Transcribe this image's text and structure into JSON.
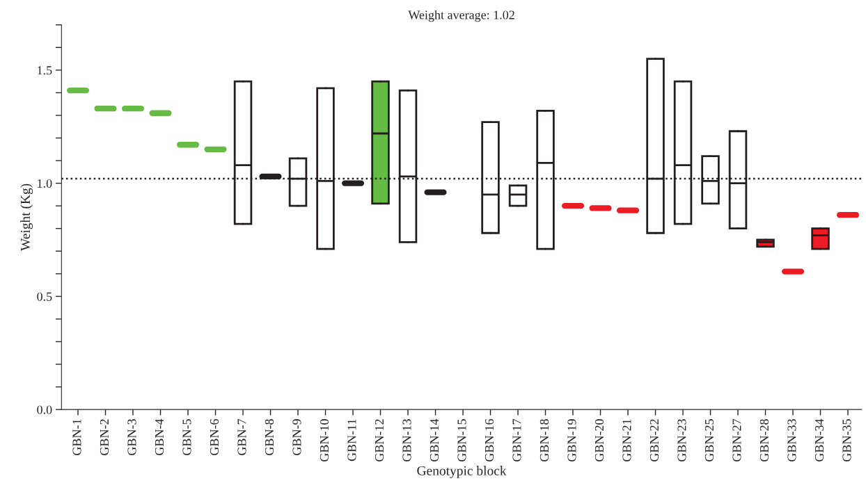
{
  "chart_data": {
    "type": "box",
    "title": "Weight average: 1.02",
    "xlabel": "Genotypic block",
    "ylabel": "Weight (Kg)",
    "categories": [
      "GBN-1",
      "GBN-2",
      "GBN-3",
      "GBN-4",
      "GBN-5",
      "GBN-6",
      "GBN-7",
      "GBN-8",
      "GBN-9",
      "GBN-10",
      "GBN-11",
      "GBN-12",
      "GBN-13",
      "GBN-14",
      "GBN-15",
      "GBN-16",
      "GBN-17",
      "GBN-18",
      "GBN-19",
      "GBN-20",
      "GBN-21",
      "GBN-22",
      "GBN-23",
      "GBN-25",
      "GBN-27",
      "GBN-28",
      "GBN-33",
      "GBN-34",
      "GBN-35"
    ],
    "colors": [
      "#66bb44",
      "#66bb44",
      "#66bb44",
      "#66bb44",
      "#66bb44",
      "#66bb44",
      "#ffffff",
      "#231f20",
      "#ffffff",
      "#ffffff",
      "#231f20",
      "#66bb44",
      "#ffffff",
      "#231f20",
      "#ffffff",
      "#ffffff",
      "#ffffff",
      "#ffffff",
      "#ed1c24",
      "#ed1c24",
      "#ed1c24",
      "#ffffff",
      "#ffffff",
      "#ffffff",
      "#ffffff",
      "#ed1c24",
      "#ed1c24",
      "#ed1c24",
      "#ed1c24"
    ],
    "boxes": [
      {
        "low": 1.41,
        "q1": 1.41,
        "median": 1.41,
        "q3": 1.41,
        "high": 1.41
      },
      {
        "low": 1.33,
        "q1": 1.33,
        "median": 1.33,
        "q3": 1.33,
        "high": 1.33
      },
      {
        "low": 1.33,
        "q1": 1.33,
        "median": 1.33,
        "q3": 1.33,
        "high": 1.33
      },
      {
        "low": 1.31,
        "q1": 1.31,
        "median": 1.31,
        "q3": 1.31,
        "high": 1.31
      },
      {
        "low": 1.17,
        "q1": 1.17,
        "median": 1.17,
        "q3": 1.17,
        "high": 1.17
      },
      {
        "low": 1.15,
        "q1": 1.15,
        "median": 1.15,
        "q3": 1.15,
        "high": 1.15
      },
      {
        "low": 0.82,
        "q1": 0.82,
        "median": 1.08,
        "q3": 1.45,
        "high": 1.45
      },
      {
        "low": 1.03,
        "q1": 1.03,
        "median": 1.03,
        "q3": 1.03,
        "high": 1.03
      },
      {
        "low": 0.9,
        "q1": 0.9,
        "median": 1.02,
        "q3": 1.11,
        "high": 1.11
      },
      {
        "low": 0.71,
        "q1": 0.71,
        "median": 1.01,
        "q3": 1.42,
        "high": 1.42
      },
      {
        "low": 1.0,
        "q1": 1.0,
        "median": 1.0,
        "q3": 1.0,
        "high": 1.0
      },
      {
        "low": 0.91,
        "q1": 0.91,
        "median": 1.22,
        "q3": 1.45,
        "high": 1.45
      },
      {
        "low": 0.74,
        "q1": 0.74,
        "median": 1.03,
        "q3": 1.41,
        "high": 1.41
      },
      {
        "low": 0.96,
        "q1": 0.96,
        "median": 0.96,
        "q3": 0.96,
        "high": 0.96
      },
      null,
      {
        "low": 0.78,
        "q1": 0.78,
        "median": 0.95,
        "q3": 1.27,
        "high": 1.27
      },
      {
        "low": 0.9,
        "q1": 0.9,
        "median": 0.95,
        "q3": 0.99,
        "high": 0.99
      },
      {
        "low": 0.71,
        "q1": 0.71,
        "median": 1.09,
        "q3": 1.32,
        "high": 1.32
      },
      {
        "low": 0.9,
        "q1": 0.9,
        "median": 0.9,
        "q3": 0.9,
        "high": 0.9
      },
      {
        "low": 0.89,
        "q1": 0.89,
        "median": 0.89,
        "q3": 0.89,
        "high": 0.89
      },
      {
        "low": 0.88,
        "q1": 0.88,
        "median": 0.88,
        "q3": 0.88,
        "high": 0.88
      },
      {
        "low": 0.78,
        "q1": 0.78,
        "median": 1.02,
        "q3": 1.55,
        "high": 1.55
      },
      {
        "low": 0.82,
        "q1": 0.82,
        "median": 1.08,
        "q3": 1.45,
        "high": 1.45
      },
      {
        "low": 0.91,
        "q1": 0.91,
        "median": 1.01,
        "q3": 1.12,
        "high": 1.12
      },
      {
        "low": 0.8,
        "q1": 0.8,
        "median": 1.0,
        "q3": 1.23,
        "high": 1.23
      },
      {
        "low": 0.72,
        "q1": 0.72,
        "median": 0.74,
        "q3": 0.75,
        "high": 0.75
      },
      {
        "low": 0.61,
        "q1": 0.61,
        "median": 0.61,
        "q3": 0.61,
        "high": 0.61
      },
      {
        "low": 0.71,
        "q1": 0.71,
        "median": 0.77,
        "q3": 0.8,
        "high": 0.8
      },
      {
        "low": 0.86,
        "q1": 0.86,
        "median": 0.86,
        "q3": 0.86,
        "high": 0.86
      }
    ],
    "ylim": [
      0,
      1.7
    ],
    "yticks": [
      {
        "value": 0,
        "label": "0.0"
      },
      {
        "value": 0.1,
        "label": null
      },
      {
        "value": 0.2,
        "label": null
      },
      {
        "value": 0.3,
        "label": null
      },
      {
        "value": 0.4,
        "label": null
      },
      {
        "value": 0.5,
        "label": "0.5"
      },
      {
        "value": 0.6,
        "label": null
      },
      {
        "value": 0.7,
        "label": null
      },
      {
        "value": 0.8,
        "label": null
      },
      {
        "value": 0.9,
        "label": null
      },
      {
        "value": 1.0,
        "label": "1.0"
      },
      {
        "value": 1.1,
        "label": null
      },
      {
        "value": 1.2,
        "label": null
      },
      {
        "value": 1.3,
        "label": null
      },
      {
        "value": 1.4,
        "label": null
      },
      {
        "value": 1.5,
        "label": "1.5"
      },
      {
        "value": 1.6,
        "label": null
      },
      {
        "value": 1.7,
        "label": null
      }
    ],
    "ref_lines": [
      {
        "axis": "y",
        "value": 1.02,
        "color": "#231f20",
        "line_style": "dotted"
      }
    ],
    "grid": false,
    "legend": false
  }
}
